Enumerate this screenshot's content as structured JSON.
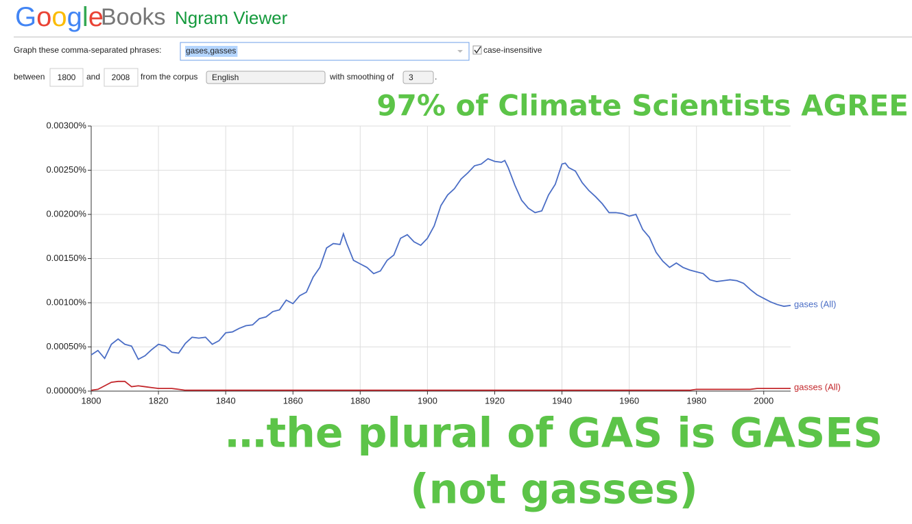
{
  "header": {
    "logo_google": "Google",
    "logo_books": "Books",
    "product": "Ngram Viewer"
  },
  "form": {
    "phrases_label": "Graph these comma-separated phrases:",
    "phrases": "gases,gasses",
    "case_label": "case-insensitive",
    "between": "between",
    "start_year": "1800",
    "and": "and",
    "end_year": "2008",
    "corpus_label": "from the corpus",
    "corpus": "English",
    "smoothing_label": "with smoothing of",
    "smoothing": "3",
    "period": "."
  },
  "annotations": {
    "top": "97% of Climate Scientists AGREE",
    "bottom_line1": "…the plural of GAS is GASES",
    "bottom_line2": "(not gasses)"
  },
  "chart_data": {
    "type": "line",
    "x": [
      1800,
      1802,
      1804,
      1806,
      1808,
      1810,
      1812,
      1814,
      1816,
      1818,
      1820,
      1822,
      1824,
      1826,
      1828,
      1830,
      1832,
      1834,
      1836,
      1838,
      1840,
      1842,
      1844,
      1846,
      1848,
      1850,
      1852,
      1854,
      1856,
      1858,
      1860,
      1862,
      1864,
      1866,
      1868,
      1870,
      1872,
      1874,
      1875,
      1876,
      1878,
      1880,
      1882,
      1884,
      1886,
      1888,
      1890,
      1892,
      1894,
      1896,
      1898,
      1900,
      1902,
      1904,
      1906,
      1908,
      1910,
      1912,
      1914,
      1916,
      1918,
      1920,
      1922,
      1923,
      1924,
      1926,
      1928,
      1930,
      1932,
      1934,
      1936,
      1938,
      1940,
      1941,
      1942,
      1944,
      1946,
      1948,
      1950,
      1952,
      1954,
      1956,
      1958,
      1960,
      1962,
      1964,
      1966,
      1968,
      1970,
      1972,
      1974,
      1976,
      1978,
      1980,
      1982,
      1984,
      1986,
      1988,
      1990,
      1992,
      1994,
      1996,
      1998,
      2000,
      2002,
      2004,
      2006,
      2008
    ],
    "series": [
      {
        "name": "gases (All)",
        "color": "#4a6dc5",
        "values": [
          0.00041,
          0.00046,
          0.00037,
          0.00053,
          0.00059,
          0.00053,
          0.00051,
          0.00036,
          0.0004,
          0.00047,
          0.00053,
          0.00051,
          0.00044,
          0.00043,
          0.00054,
          0.00061,
          0.0006,
          0.00061,
          0.00053,
          0.00057,
          0.00066,
          0.00067,
          0.00071,
          0.00074,
          0.00075,
          0.00082,
          0.00084,
          0.0009,
          0.00092,
          0.00103,
          0.00099,
          0.00108,
          0.00112,
          0.00129,
          0.0014,
          0.00162,
          0.00167,
          0.00166,
          0.00178,
          0.00167,
          0.00148,
          0.00144,
          0.0014,
          0.00133,
          0.00136,
          0.00148,
          0.00154,
          0.00173,
          0.00177,
          0.00169,
          0.00165,
          0.00173,
          0.00187,
          0.0021,
          0.00222,
          0.00229,
          0.0024,
          0.00247,
          0.00255,
          0.00257,
          0.00263,
          0.0026,
          0.00259,
          0.00261,
          0.00253,
          0.00233,
          0.00216,
          0.00207,
          0.00202,
          0.00204,
          0.00222,
          0.00234,
          0.00257,
          0.00258,
          0.00253,
          0.00249,
          0.00236,
          0.00227,
          0.0022,
          0.00212,
          0.00202,
          0.00202,
          0.00201,
          0.00198,
          0.002,
          0.00183,
          0.00174,
          0.00157,
          0.00147,
          0.0014,
          0.00145,
          0.0014,
          0.00137,
          0.00135,
          0.00133,
          0.00126,
          0.00124,
          0.00125,
          0.00126,
          0.00125,
          0.00122,
          0.00115,
          0.00109,
          0.00105,
          0.00101,
          0.00098,
          0.00096,
          0.00097
        ]
      },
      {
        "name": "gasses (All)",
        "color": "#c3272b",
        "values": [
          1e-05,
          2e-05,
          6e-05,
          0.0001,
          0.00011,
          0.00011,
          5e-05,
          6e-05,
          5e-05,
          4e-05,
          3e-05,
          3e-05,
          3e-05,
          2e-05,
          1e-05,
          1e-05,
          1e-05,
          1e-05,
          1e-05,
          1e-05,
          1e-05,
          1e-05,
          1e-05,
          1e-05,
          1e-05,
          1e-05,
          1e-05,
          1e-05,
          1e-05,
          1e-05,
          1e-05,
          1e-05,
          1e-05,
          1e-05,
          1e-05,
          1e-05,
          1e-05,
          1e-05,
          1e-05,
          1e-05,
          1e-05,
          1e-05,
          1e-05,
          1e-05,
          1e-05,
          1e-05,
          1e-05,
          1e-05,
          1e-05,
          1e-05,
          1e-05,
          1e-05,
          1e-05,
          1e-05,
          1e-05,
          1e-05,
          1e-05,
          1e-05,
          1e-05,
          1e-05,
          1e-05,
          1e-05,
          1e-05,
          1e-05,
          1e-05,
          1e-05,
          1e-05,
          1e-05,
          1e-05,
          1e-05,
          1e-05,
          1e-05,
          1e-05,
          1e-05,
          1e-05,
          1e-05,
          1e-05,
          1e-05,
          1e-05,
          1e-05,
          1e-05,
          1e-05,
          1e-05,
          1e-05,
          1e-05,
          1e-05,
          1e-05,
          1e-05,
          1e-05,
          1e-05,
          1e-05,
          1e-05,
          1e-05,
          2e-05,
          2e-05,
          2e-05,
          2e-05,
          2e-05,
          2e-05,
          2e-05,
          2e-05,
          2e-05,
          3e-05,
          3e-05,
          3e-05,
          3e-05,
          3e-05,
          3e-05
        ]
      }
    ],
    "xlim": [
      1800,
      2008
    ],
    "xticks": [
      1800,
      1820,
      1840,
      1860,
      1880,
      1900,
      1920,
      1940,
      1960,
      1980,
      2000
    ],
    "ylim": [
      0,
      0.003
    ],
    "yticks": [
      {
        "value": 0,
        "label": "0.00000%"
      },
      {
        "value": 0.0005,
        "label": "0.00050%"
      },
      {
        "value": 0.001,
        "label": "0.00100%"
      },
      {
        "value": 0.0015,
        "label": "0.00150%"
      },
      {
        "value": 0.002,
        "label": "0.00200%"
      },
      {
        "value": 0.0025,
        "label": "0.00250%"
      },
      {
        "value": 0.003,
        "label": "0.00300%"
      }
    ],
    "grid": true
  }
}
